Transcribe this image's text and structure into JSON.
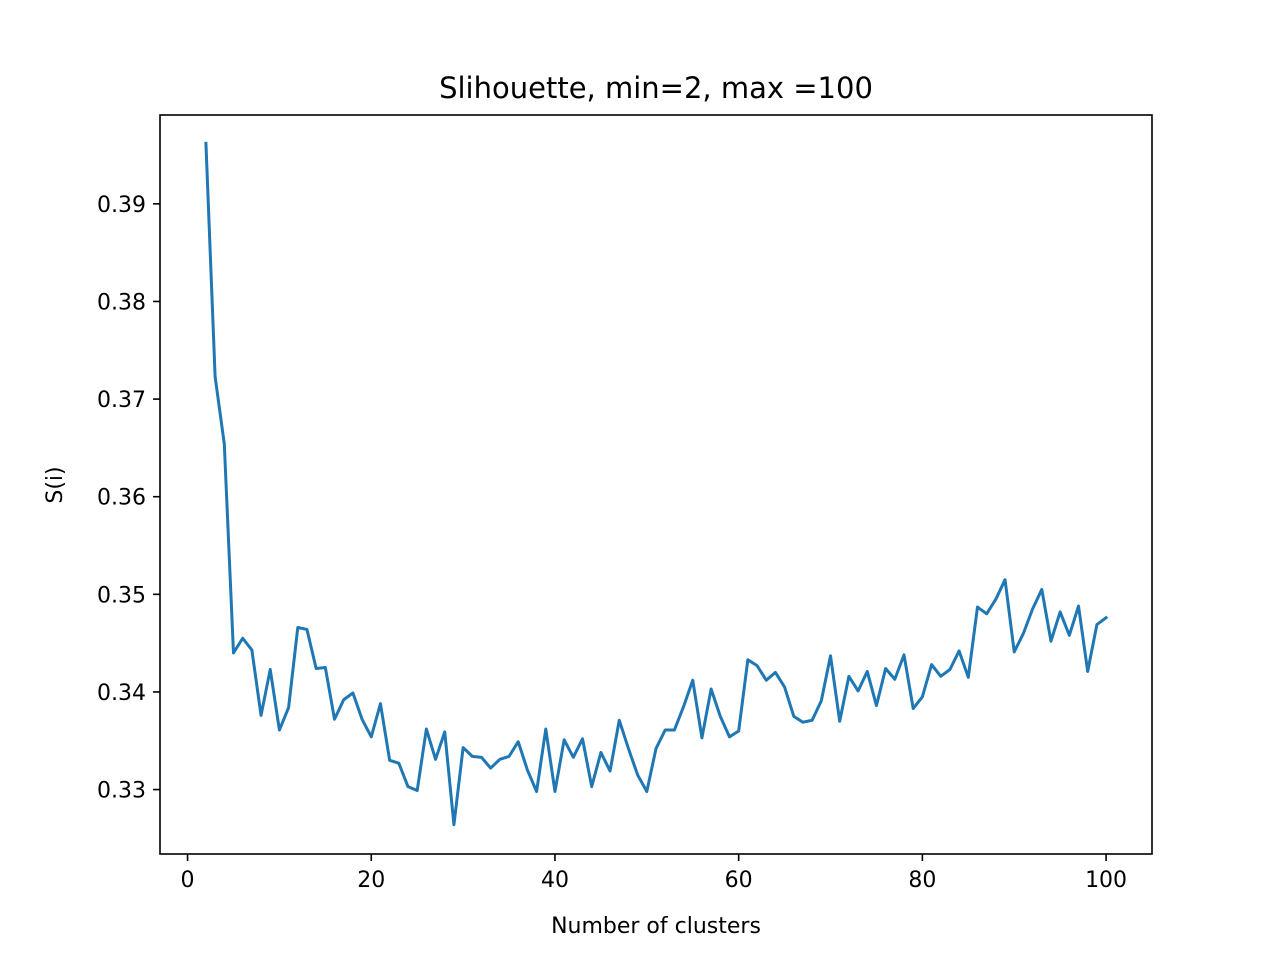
{
  "chart_data": {
    "type": "line",
    "title": "Slihouette, min=2, max =100",
    "xlabel": "Number of clusters",
    "ylabel": "S(i)",
    "xlim": [
      -3,
      105
    ],
    "ylim": [
      0.3234,
      0.3991
    ],
    "xticks": [
      0,
      20,
      40,
      60,
      80,
      100
    ],
    "xtick_labels": [
      "0",
      "20",
      "40",
      "60",
      "80",
      "100"
    ],
    "yticks": [
      0.33,
      0.34,
      0.35,
      0.36,
      0.37,
      0.38,
      0.39
    ],
    "ytick_labels": [
      "0.33",
      "0.34",
      "0.35",
      "0.36",
      "0.37",
      "0.38",
      "0.39"
    ],
    "grid": false,
    "series": [
      {
        "color": "#1f77b4",
        "x": [
          2,
          3,
          4,
          5,
          6,
          7,
          8,
          9,
          10,
          11,
          12,
          13,
          14,
          15,
          16,
          17,
          18,
          19,
          20,
          21,
          22,
          23,
          24,
          25,
          26,
          27,
          28,
          29,
          30,
          31,
          32,
          33,
          34,
          35,
          36,
          37,
          38,
          39,
          40,
          41,
          42,
          43,
          44,
          45,
          46,
          47,
          48,
          49,
          50,
          51,
          52,
          53,
          54,
          55,
          56,
          57,
          58,
          59,
          60,
          61,
          62,
          63,
          64,
          65,
          66,
          67,
          68,
          69,
          70,
          71,
          72,
          73,
          74,
          75,
          76,
          77,
          78,
          79,
          80,
          81,
          82,
          83,
          84,
          85,
          86,
          87,
          88,
          89,
          90,
          91,
          92,
          93,
          94,
          95,
          96,
          97,
          98,
          99,
          100
        ],
        "y": [
          0.3962,
          0.3723,
          0.3654,
          0.344,
          0.3455,
          0.3443,
          0.3376,
          0.3423,
          0.3361,
          0.3384,
          0.3466,
          0.3464,
          0.3424,
          0.3425,
          0.3372,
          0.3392,
          0.3399,
          0.3372,
          0.3354,
          0.3388,
          0.333,
          0.3327,
          0.3303,
          0.3299,
          0.3362,
          0.3331,
          0.3359,
          0.3264,
          0.3343,
          0.3334,
          0.3333,
          0.3322,
          0.3331,
          0.3334,
          0.3349,
          0.332,
          0.3298,
          0.3362,
          0.3298,
          0.3351,
          0.3333,
          0.3352,
          0.3303,
          0.3338,
          0.3319,
          0.3371,
          0.3342,
          0.3315,
          0.3298,
          0.3342,
          0.3361,
          0.3361,
          0.3385,
          0.3412,
          0.3353,
          0.3403,
          0.3375,
          0.3354,
          0.336,
          0.3433,
          0.3427,
          0.3412,
          0.342,
          0.3405,
          0.3375,
          0.3369,
          0.3371,
          0.3391,
          0.3437,
          0.337,
          0.3416,
          0.3401,
          0.3421,
          0.3386,
          0.3424,
          0.3413,
          0.3438,
          0.3383,
          0.3395,
          0.3428,
          0.3416,
          0.3423,
          0.3442,
          0.3415,
          0.3487,
          0.348,
          0.3495,
          0.3515,
          0.3441,
          0.346,
          0.3485,
          0.3505,
          0.3452,
          0.3482,
          0.3458,
          0.3488,
          0.3421,
          0.3469,
          0.3476
        ]
      }
    ]
  }
}
